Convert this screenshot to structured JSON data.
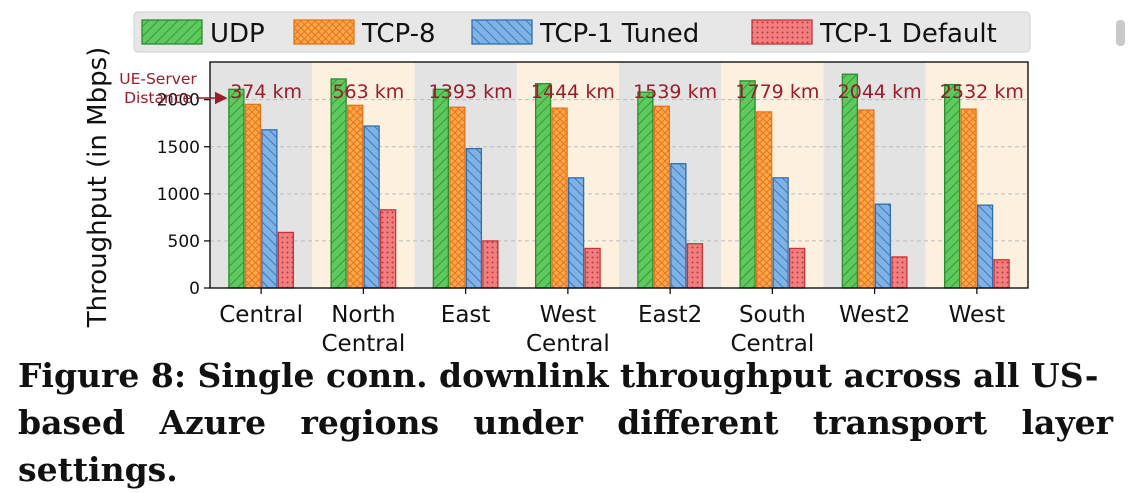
{
  "chart_data": {
    "type": "bar",
    "ylabel": "Throughput (in Mbps)",
    "ylim": [
      0,
      2400
    ],
    "yticks": [
      0,
      500,
      1000,
      1500,
      2000
    ],
    "grid": "horizontal dashed",
    "legend_position": "top",
    "categories": [
      [
        "Central"
      ],
      [
        "North",
        "Central"
      ],
      [
        "East"
      ],
      [
        "West",
        "Central"
      ],
      [
        "East2"
      ],
      [
        "South",
        "Central"
      ],
      [
        "West2"
      ],
      [
        "West"
      ]
    ],
    "distances": [
      "374 km",
      "563 km",
      "1393 km",
      "1444 km",
      "1539 km",
      "1779 km",
      "2044 km",
      "2532 km"
    ],
    "annotation": [
      "UE-Server",
      "Distance"
    ],
    "series": [
      {
        "name": "UDP",
        "color": "#5ec95e",
        "edge": "#2e8b2e",
        "pattern": "diag",
        "values": [
          2110,
          2220,
          2110,
          2170,
          2080,
          2200,
          2270,
          2160
        ]
      },
      {
        "name": "TCP-8",
        "color": "#ffa94d",
        "edge": "#e8741a",
        "pattern": "cross",
        "values": [
          1950,
          1940,
          1920,
          1910,
          1930,
          1870,
          1890,
          1900
        ]
      },
      {
        "name": "TCP-1 Tuned",
        "color": "#7fb2e5",
        "edge": "#2f6db0",
        "pattern": "back",
        "values": [
          1680,
          1720,
          1480,
          1170,
          1320,
          1170,
          890,
          880
        ]
      },
      {
        "name": "TCP-1 Default",
        "color": "#f08080",
        "edge": "#c8333a",
        "pattern": "dots",
        "values": [
          590,
          830,
          500,
          420,
          470,
          420,
          330,
          300
        ]
      }
    ],
    "band_colors": [
      "#e3e3e3",
      "#fdf0de"
    ]
  },
  "caption": {
    "line1": "Figure 8: Single conn. downlink throughput across all US-",
    "line2": "based Azure regions under different transport layer settings."
  }
}
